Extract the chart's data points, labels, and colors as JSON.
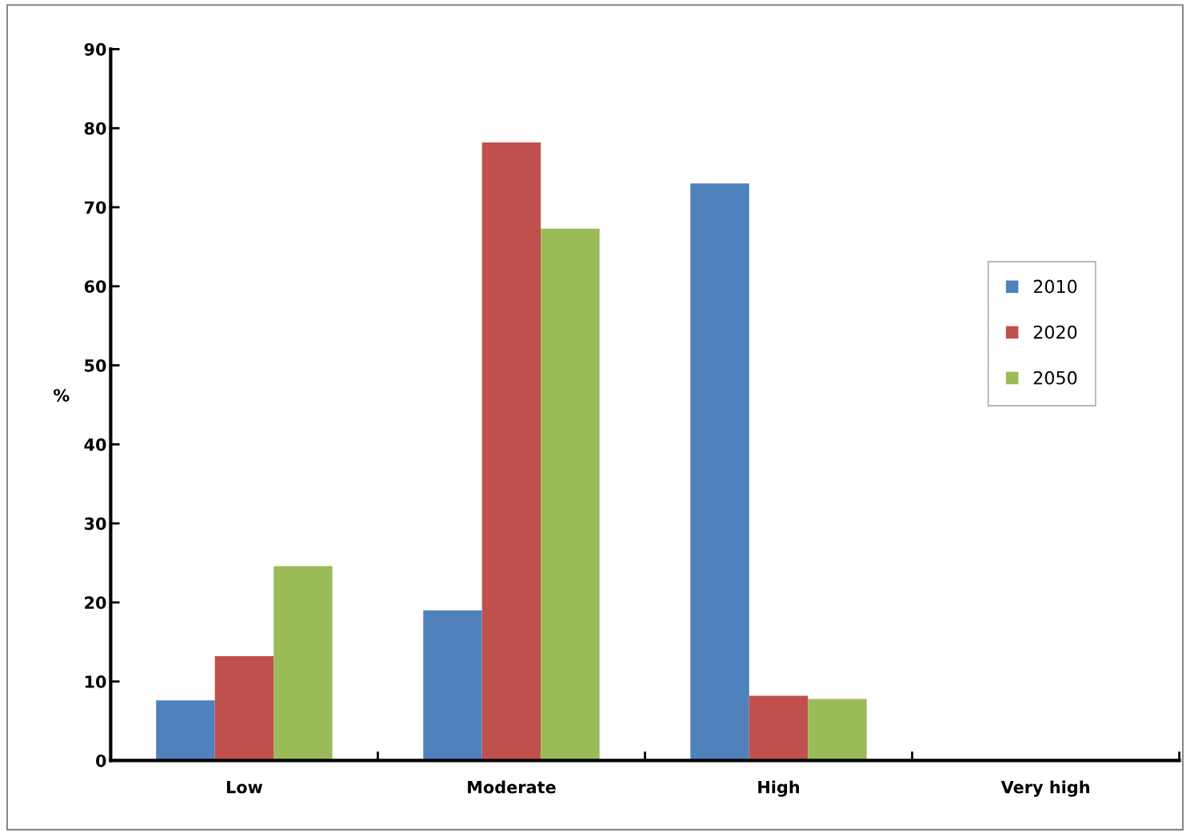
{
  "chart_data": {
    "type": "bar",
    "ylabel": "%",
    "categories": [
      "Low",
      "Moderate",
      "High",
      "Very high"
    ],
    "series": [
      {
        "name": "2010",
        "color": "#4f81bd",
        "values": [
          7.6,
          19.0,
          73.0,
          0
        ]
      },
      {
        "name": "2020",
        "color": "#c0504d",
        "values": [
          13.2,
          78.2,
          8.2,
          0
        ]
      },
      {
        "name": "2050",
        "color": "#9bbb59",
        "values": [
          24.6,
          67.3,
          7.8,
          0
        ]
      }
    ],
    "ylim": [
      0,
      90
    ],
    "yticks": [
      0,
      10,
      20,
      30,
      40,
      50,
      60,
      70,
      80,
      90
    ],
    "grid": false,
    "legend": "right"
  }
}
